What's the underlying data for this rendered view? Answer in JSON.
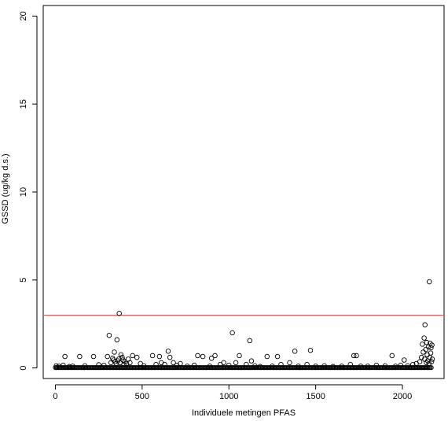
{
  "chart_data": {
    "type": "scatter",
    "title": "",
    "xlabel": "Individuele metingen PFAS",
    "ylabel": "GSSD (ug/kg d.s.)",
    "xlim": [
      -70,
      2240
    ],
    "ylim": [
      -0.6,
      20.6
    ],
    "x_ticks": [
      0,
      500,
      1000,
      1500,
      2000
    ],
    "y_ticks": [
      0,
      5,
      10,
      15,
      20
    ],
    "grid": false,
    "legend": "none",
    "marker": "open-circle",
    "point_color": "#000000",
    "reference_line": {
      "y": 3,
      "color": "#d9534f"
    },
    "points": [
      [
        5,
        0.12
      ],
      [
        20,
        0.1
      ],
      [
        45,
        0.15
      ],
      [
        55,
        0.65
      ],
      [
        80,
        0.08
      ],
      [
        100,
        0.1
      ],
      [
        140,
        0.65
      ],
      [
        170,
        0.12
      ],
      [
        220,
        0.65
      ],
      [
        250,
        0.18
      ],
      [
        280,
        0.15
      ],
      [
        300,
        0.65
      ],
      [
        310,
        1.85
      ],
      [
        320,
        0.3
      ],
      [
        330,
        0.55
      ],
      [
        335,
        0.45
      ],
      [
        340,
        0.9
      ],
      [
        345,
        0.35
      ],
      [
        350,
        0.25
      ],
      [
        355,
        1.6
      ],
      [
        360,
        0.4
      ],
      [
        365,
        0.5
      ],
      [
        368,
        3.1
      ],
      [
        372,
        0.3
      ],
      [
        378,
        0.75
      ],
      [
        385,
        0.6
      ],
      [
        390,
        0.45
      ],
      [
        395,
        0.2
      ],
      [
        400,
        0.35
      ],
      [
        410,
        0.25
      ],
      [
        420,
        0.5
      ],
      [
        430,
        0.3
      ],
      [
        445,
        0.7
      ],
      [
        470,
        0.6
      ],
      [
        490,
        0.25
      ],
      [
        510,
        0.12
      ],
      [
        560,
        0.7
      ],
      [
        580,
        0.2
      ],
      [
        600,
        0.65
      ],
      [
        610,
        0.3
      ],
      [
        630,
        0.2
      ],
      [
        650,
        0.95
      ],
      [
        660,
        0.6
      ],
      [
        680,
        0.3
      ],
      [
        700,
        0.15
      ],
      [
        720,
        0.25
      ],
      [
        760,
        0.1
      ],
      [
        800,
        0.15
      ],
      [
        820,
        0.7
      ],
      [
        850,
        0.65
      ],
      [
        890,
        0.1
      ],
      [
        900,
        0.55
      ],
      [
        920,
        0.7
      ],
      [
        950,
        0.2
      ],
      [
        970,
        0.3
      ],
      [
        1000,
        0.15
      ],
      [
        1020,
        2.0
      ],
      [
        1040,
        0.3
      ],
      [
        1060,
        0.7
      ],
      [
        1100,
        0.2
      ],
      [
        1120,
        1.55
      ],
      [
        1130,
        0.4
      ],
      [
        1150,
        0.12
      ],
      [
        1180,
        0.08
      ],
      [
        1220,
        0.65
      ],
      [
        1250,
        0.1
      ],
      [
        1280,
        0.65
      ],
      [
        1300,
        0.2
      ],
      [
        1350,
        0.3
      ],
      [
        1380,
        0.95
      ],
      [
        1400,
        0.1
      ],
      [
        1450,
        0.2
      ],
      [
        1470,
        1.0
      ],
      [
        1500,
        0.1
      ],
      [
        1550,
        0.12
      ],
      [
        1600,
        0.08
      ],
      [
        1650,
        0.1
      ],
      [
        1700,
        0.2
      ],
      [
        1720,
        0.7
      ],
      [
        1735,
        0.7
      ],
      [
        1760,
        0.1
      ],
      [
        1800,
        0.1
      ],
      [
        1850,
        0.15
      ],
      [
        1900,
        0.12
      ],
      [
        1940,
        0.7
      ],
      [
        1960,
        0.1
      ],
      [
        1990,
        0.15
      ],
      [
        2010,
        0.45
      ],
      [
        2030,
        0.12
      ],
      [
        2060,
        0.2
      ],
      [
        2080,
        0.25
      ],
      [
        2100,
        0.35
      ],
      [
        2110,
        0.6
      ],
      [
        2115,
        1.35
      ],
      [
        2120,
        0.9
      ],
      [
        2125,
        1.7
      ],
      [
        2128,
        0.5
      ],
      [
        2130,
        2.45
      ],
      [
        2135,
        1.05
      ],
      [
        2138,
        0.3
      ],
      [
        2140,
        1.45
      ],
      [
        2143,
        0.75
      ],
      [
        2146,
        0.4
      ],
      [
        2150,
        1.2
      ],
      [
        2153,
        0.25
      ],
      [
        2155,
        4.9
      ],
      [
        2158,
        0.6
      ],
      [
        2160,
        1.4
      ],
      [
        2163,
        0.85
      ],
      [
        2165,
        1.15
      ],
      [
        2168,
        0.35
      ],
      [
        2170,
        1.3
      ],
      [
        2172,
        0.5
      ]
    ]
  }
}
